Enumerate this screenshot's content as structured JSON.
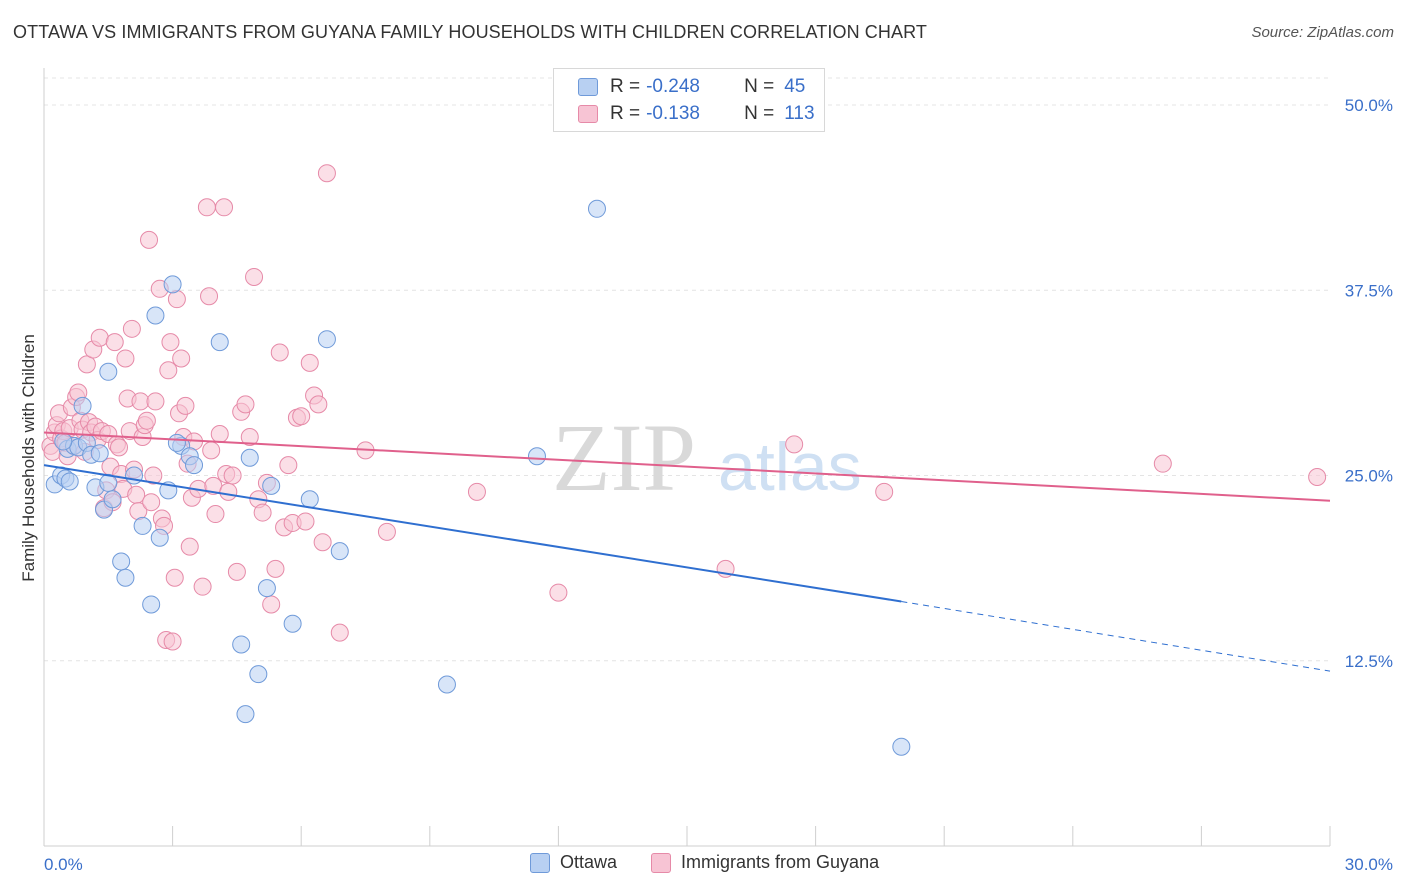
{
  "title": "OTTAWA VS IMMIGRANTS FROM GUYANA FAMILY HOUSEHOLDS WITH CHILDREN CORRELATION CHART",
  "source": "Source: ZipAtlas.com",
  "watermark": {
    "zip": "ZIP",
    "atlas": "atlas"
  },
  "legend": {
    "rows": [
      {
        "r_label": "R =",
        "r_value": "-0.248",
        "n_label": "N =",
        "n_value": "45"
      },
      {
        "r_label": "R =",
        "r_value": "-0.138",
        "n_label": "N =",
        "n_value": "113"
      }
    ]
  },
  "bottom_legend": [
    "Ottawa",
    "Immigrants from Guyana"
  ],
  "colors": {
    "ottawa_fill": "#b8d0f2",
    "ottawa_stroke": "#6f9ad9",
    "ottawa_line": "#2f6fd0",
    "guyana_fill": "#f7c4d4",
    "guyana_stroke": "#e68aa8",
    "guyana_line": "#e0608c",
    "tick_text": "#3a6fc9",
    "grid": "#e4e4e4"
  },
  "chart_data": {
    "type": "scatter",
    "title": "OTTAWA VS IMMIGRANTS FROM GUYANA FAMILY HOUSEHOLDS WITH CHILDREN CORRELATION CHART",
    "xlabel": "",
    "ylabel": "Family Households with Children",
    "xlim": [
      0,
      30
    ],
    "ylim": [
      0,
      52.5
    ],
    "x_tick_labels": [
      "0.0%",
      "30.0%"
    ],
    "y_ticks": [
      12.5,
      25.0,
      37.5,
      50.0
    ],
    "y_tick_labels": [
      "12.5%",
      "25.0%",
      "37.5%",
      "50.0%"
    ],
    "series": [
      {
        "name": "Ottawa",
        "R": -0.248,
        "N": 45,
        "trend": {
          "x0": 0,
          "y0": 25.7,
          "x1": 20.0,
          "y1": 16.5,
          "dash_to_x": 30,
          "dash_to_y": 11.8
        },
        "points": [
          [
            0.25,
            24.4
          ],
          [
            0.4,
            25.0
          ],
          [
            0.5,
            24.8
          ],
          [
            0.6,
            24.6
          ],
          [
            0.55,
            26.8
          ],
          [
            0.7,
            27.0
          ],
          [
            0.8,
            26.9
          ],
          [
            0.9,
            29.7
          ],
          [
            1.0,
            27.2
          ],
          [
            1.1,
            26.4
          ],
          [
            1.2,
            24.2
          ],
          [
            1.4,
            22.7
          ],
          [
            1.5,
            24.5
          ],
          [
            1.6,
            23.4
          ],
          [
            1.5,
            32.0
          ],
          [
            1.8,
            19.2
          ],
          [
            1.9,
            18.1
          ],
          [
            2.1,
            25.0
          ],
          [
            2.3,
            21.6
          ],
          [
            2.5,
            16.3
          ],
          [
            2.6,
            35.8
          ],
          [
            2.7,
            20.8
          ],
          [
            2.9,
            24.0
          ],
          [
            3.0,
            37.9
          ],
          [
            3.2,
            27.0
          ],
          [
            3.4,
            26.3
          ],
          [
            3.5,
            25.7
          ],
          [
            4.1,
            34.0
          ],
          [
            4.6,
            13.6
          ],
          [
            4.7,
            8.9
          ],
          [
            4.8,
            26.2
          ],
          [
            5.0,
            11.6
          ],
          [
            5.2,
            17.4
          ],
          [
            5.3,
            24.3
          ],
          [
            5.8,
            15.0
          ],
          [
            6.2,
            23.4
          ],
          [
            6.6,
            34.2
          ],
          [
            6.9,
            19.9
          ],
          [
            9.4,
            10.9
          ],
          [
            11.5,
            26.3
          ],
          [
            12.9,
            43.0
          ],
          [
            20.0,
            6.7
          ],
          [
            0.45,
            27.3
          ],
          [
            1.3,
            26.5
          ],
          [
            3.1,
            27.2
          ]
        ]
      },
      {
        "name": "Immigrants from Guyana",
        "R": -0.138,
        "N": 113,
        "trend": {
          "x0": 0,
          "y0": 27.9,
          "x1": 30,
          "y1": 23.3
        },
        "points": [
          [
            0.15,
            27.0
          ],
          [
            0.2,
            26.6
          ],
          [
            0.25,
            27.9
          ],
          [
            0.3,
            28.4
          ],
          [
            0.35,
            29.2
          ],
          [
            0.4,
            27.5
          ],
          [
            0.45,
            28.0
          ],
          [
            0.5,
            27.2
          ],
          [
            0.55,
            26.3
          ],
          [
            0.6,
            28.2
          ],
          [
            0.65,
            29.6
          ],
          [
            0.7,
            27.0
          ],
          [
            0.75,
            30.3
          ],
          [
            0.8,
            30.6
          ],
          [
            0.85,
            28.7
          ],
          [
            0.9,
            28.1
          ],
          [
            0.95,
            26.6
          ],
          [
            1.0,
            32.5
          ],
          [
            1.05,
            28.6
          ],
          [
            1.1,
            27.9
          ],
          [
            1.15,
            33.5
          ],
          [
            1.2,
            28.3
          ],
          [
            1.25,
            27.4
          ],
          [
            1.3,
            34.3
          ],
          [
            1.35,
            28.0
          ],
          [
            1.4,
            22.8
          ],
          [
            1.45,
            24.0
          ],
          [
            1.5,
            27.8
          ],
          [
            1.55,
            25.6
          ],
          [
            1.6,
            23.2
          ],
          [
            1.65,
            34.0
          ],
          [
            1.7,
            27.1
          ],
          [
            1.75,
            26.9
          ],
          [
            1.8,
            25.1
          ],
          [
            1.85,
            24.1
          ],
          [
            1.9,
            32.9
          ],
          [
            1.95,
            30.2
          ],
          [
            2.0,
            28.0
          ],
          [
            2.05,
            34.9
          ],
          [
            2.1,
            25.4
          ],
          [
            2.15,
            23.7
          ],
          [
            2.2,
            22.6
          ],
          [
            2.25,
            30.0
          ],
          [
            2.3,
            27.6
          ],
          [
            2.35,
            28.4
          ],
          [
            2.4,
            28.7
          ],
          [
            2.45,
            40.9
          ],
          [
            2.5,
            23.2
          ],
          [
            2.55,
            25.0
          ],
          [
            2.6,
            30.0
          ],
          [
            2.7,
            37.6
          ],
          [
            2.75,
            22.1
          ],
          [
            2.8,
            21.6
          ],
          [
            2.85,
            13.9
          ],
          [
            2.9,
            32.1
          ],
          [
            2.95,
            34.0
          ],
          [
            3.0,
            13.8
          ],
          [
            3.05,
            18.1
          ],
          [
            3.1,
            36.9
          ],
          [
            3.15,
            29.2
          ],
          [
            3.2,
            32.9
          ],
          [
            3.25,
            27.6
          ],
          [
            3.3,
            29.7
          ],
          [
            3.35,
            25.8
          ],
          [
            3.4,
            20.2
          ],
          [
            3.45,
            23.5
          ],
          [
            3.5,
            27.3
          ],
          [
            3.6,
            24.1
          ],
          [
            3.7,
            17.5
          ],
          [
            3.8,
            43.1
          ],
          [
            3.85,
            37.1
          ],
          [
            3.9,
            26.7
          ],
          [
            3.95,
            24.3
          ],
          [
            4.0,
            22.4
          ],
          [
            4.1,
            27.8
          ],
          [
            4.2,
            43.1
          ],
          [
            4.25,
            25.1
          ],
          [
            4.3,
            23.9
          ],
          [
            4.4,
            25.0
          ],
          [
            4.5,
            18.5
          ],
          [
            4.6,
            29.3
          ],
          [
            4.7,
            29.8
          ],
          [
            4.8,
            27.6
          ],
          [
            4.9,
            38.4
          ],
          [
            5.0,
            23.4
          ],
          [
            5.1,
            22.5
          ],
          [
            5.2,
            24.5
          ],
          [
            5.3,
            16.3
          ],
          [
            5.4,
            18.7
          ],
          [
            5.5,
            33.3
          ],
          [
            5.6,
            21.5
          ],
          [
            5.7,
            25.7
          ],
          [
            5.8,
            21.8
          ],
          [
            5.9,
            28.9
          ],
          [
            6.0,
            29.0
          ],
          [
            6.1,
            21.9
          ],
          [
            6.2,
            32.6
          ],
          [
            6.3,
            30.4
          ],
          [
            6.4,
            29.8
          ],
          [
            6.5,
            20.5
          ],
          [
            6.6,
            45.4
          ],
          [
            6.9,
            14.4
          ],
          [
            7.5,
            26.7
          ],
          [
            8.0,
            21.2
          ],
          [
            10.1,
            23.9
          ],
          [
            12.0,
            17.1
          ],
          [
            15.9,
            18.7
          ],
          [
            17.5,
            27.1
          ],
          [
            19.6,
            23.9
          ],
          [
            26.1,
            25.8
          ],
          [
            29.7,
            24.9
          ]
        ]
      }
    ]
  }
}
